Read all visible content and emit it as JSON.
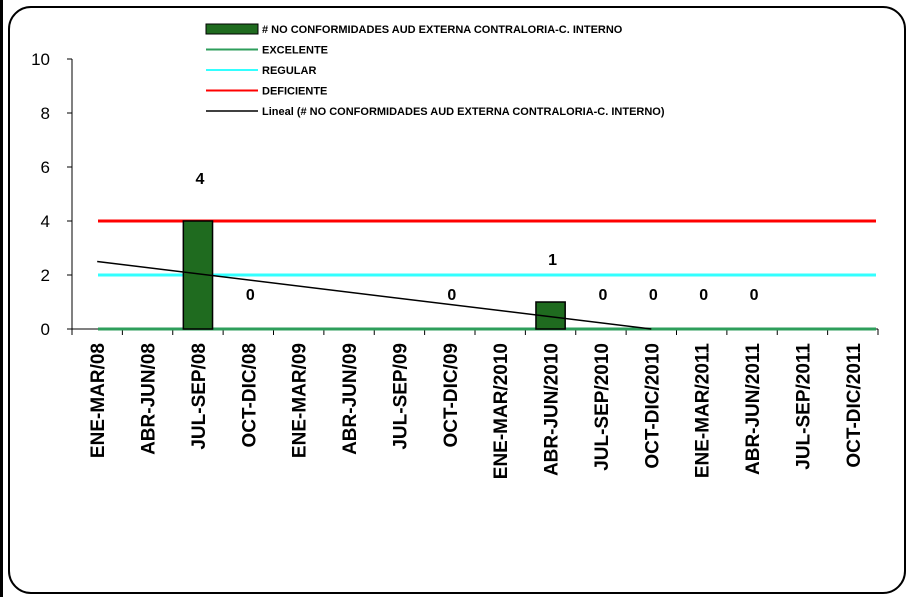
{
  "chart_data": {
    "type": "bar",
    "categories": [
      "ENE-MAR/08",
      "ABR-JUN/08",
      "JUL-SEP/08",
      "OCT-DIC/08",
      "ENE-MAR/09",
      "ABR-JUN/09",
      "JUL-SEP/09",
      "OCT-DIC/09",
      "ENE-MAR/2010",
      "ABR-JUN/2010",
      "JUL-SEP/2010",
      "OCT-DIC/2010",
      "ENE-MAR/2011",
      "ABR-JUN/2011",
      "JUL-SEP/2011",
      "OCT-DIC/2011"
    ],
    "series": [
      {
        "name": "# NO CONFORMIDADES AUD EXTERNA CONTRALORIA-C. INTERNO",
        "type": "bar",
        "color": "#1f6b1f",
        "values": [
          null,
          null,
          4,
          0,
          null,
          null,
          null,
          0,
          null,
          1,
          0,
          0,
          0,
          0,
          null,
          null
        ],
        "labels": [
          "",
          "",
          "4",
          "0",
          "",
          "",
          "",
          "0",
          "",
          "1",
          "0",
          "0",
          "0",
          "0",
          "",
          ""
        ]
      },
      {
        "name": "EXCELENTE",
        "type": "line",
        "color": "#2e9e5b",
        "value": 0
      },
      {
        "name": "REGULAR",
        "type": "line",
        "color": "#33ffff",
        "value": 2
      },
      {
        "name": "DEFICIENTE",
        "type": "line",
        "color": "#ff0000",
        "value": 4
      },
      {
        "name": "Lineal (# NO CONFORMIDADES AUD EXTERNA CONTRALORIA-C. INTERNO)",
        "type": "trendline",
        "color": "#000000",
        "start_value": 2.5,
        "end_value": 0,
        "end_category_index": 11
      }
    ],
    "yticks": [
      0,
      2,
      4,
      6,
      8,
      10
    ],
    "ylim": [
      0,
      10
    ],
    "grid": false,
    "legend_position": "top-center"
  }
}
